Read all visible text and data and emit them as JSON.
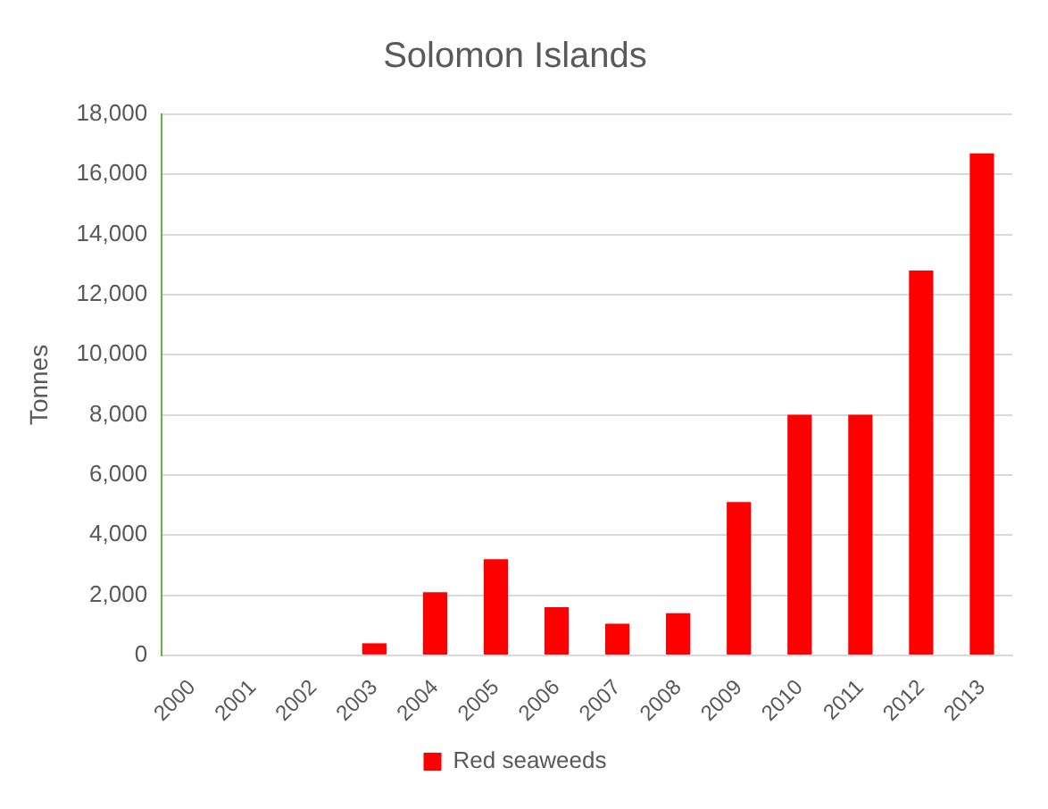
{
  "chart_data": {
    "type": "bar",
    "title": "Solomon Islands",
    "ylabel": "Tonnes",
    "categories": [
      "2000",
      "2001",
      "2002",
      "2003",
      "2004",
      "2005",
      "2006",
      "2007",
      "2008",
      "2009",
      "2010",
      "2011",
      "2012",
      "2013"
    ],
    "series": [
      {
        "name": "Red seaweeds",
        "color": "#ff0000",
        "values": [
          0,
          0,
          0,
          400,
          2100,
          3200,
          1600,
          1050,
          1400,
          5100,
          8000,
          8000,
          12800,
          16700
        ]
      }
    ],
    "ylim": [
      0,
      18000
    ],
    "yticks": [
      0,
      {
        "value": 2000,
        "label": "2,000"
      },
      {
        "value": 4000,
        "label": "4,000"
      },
      {
        "value": 6000,
        "label": "6,000"
      },
      {
        "value": 8000,
        "label": "8,000"
      },
      {
        "value": 10000,
        "label": "10,000"
      },
      {
        "value": 12000,
        "label": "12,000"
      },
      {
        "value": 14000,
        "label": "14,000"
      },
      {
        "value": 16000,
        "label": "16,000"
      },
      {
        "value": 18000,
        "label": "18,000"
      }
    ],
    "grid": "y",
    "legend": "bottom"
  }
}
